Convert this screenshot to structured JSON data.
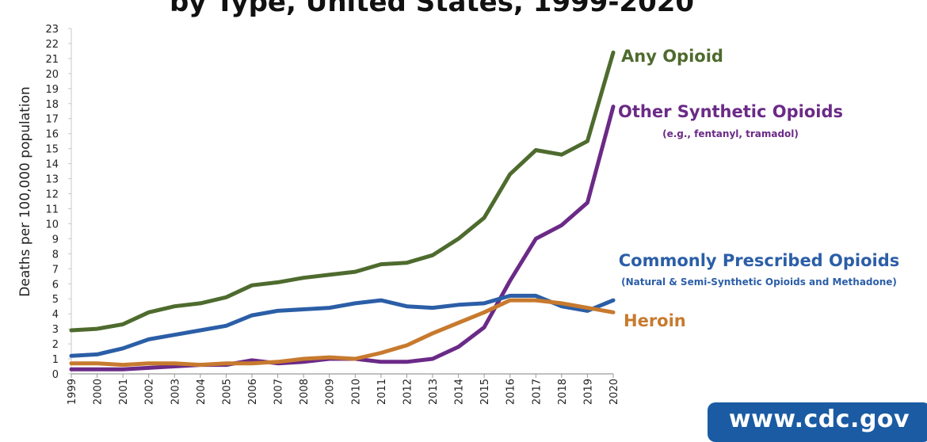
{
  "chart_data": {
    "type": "line",
    "title": "by Type, United States, 1999-2020",
    "xlabel": "",
    "ylabel": "Deaths per 100,000 population",
    "ylim": [
      0,
      23
    ],
    "yticks": [
      0,
      1,
      2,
      3,
      4,
      5,
      6,
      7,
      8,
      9,
      10,
      11,
      12,
      13,
      14,
      15,
      16,
      17,
      18,
      19,
      20,
      21,
      22,
      23
    ],
    "categories": [
      "1999",
      "2000",
      "2001",
      "2002",
      "2003",
      "2004",
      "2005",
      "2006",
      "2007",
      "2008",
      "2009",
      "2010",
      "2011",
      "2012",
      "2013",
      "2014",
      "2015",
      "2016",
      "2017",
      "2018",
      "2019",
      "2020"
    ],
    "series": [
      {
        "name": "Any Opioid",
        "color": "#4e6b2e",
        "values": [
          2.9,
          3.0,
          3.3,
          4.1,
          4.5,
          4.7,
          5.1,
          5.9,
          6.1,
          6.4,
          6.6,
          6.8,
          7.3,
          7.4,
          7.9,
          9.0,
          10.4,
          13.3,
          14.9,
          14.6,
          15.5,
          21.4
        ]
      },
      {
        "name": "Other Synthetic Opioids",
        "sublabel": "(e.g., fentanyl, tramadol)",
        "color": "#6b2a87",
        "values": [
          0.3,
          0.3,
          0.3,
          0.4,
          0.5,
          0.6,
          0.6,
          0.9,
          0.7,
          0.8,
          1.0,
          1.0,
          0.8,
          0.8,
          1.0,
          1.8,
          3.1,
          6.2,
          9.0,
          9.9,
          11.4,
          17.8
        ]
      },
      {
        "name": "Commonly Prescribed Opioids",
        "sublabel": "(Natural & Semi-Synthetic Opioids and Methadone)",
        "color": "#2b5ea7",
        "values": [
          1.2,
          1.3,
          1.7,
          2.3,
          2.6,
          2.9,
          3.2,
          3.9,
          4.2,
          4.3,
          4.4,
          4.7,
          4.9,
          4.5,
          4.4,
          4.6,
          4.7,
          5.2,
          5.2,
          4.5,
          4.2,
          4.9
        ]
      },
      {
        "name": "Heroin",
        "color": "#c77a2e",
        "values": [
          0.7,
          0.7,
          0.6,
          0.7,
          0.7,
          0.6,
          0.7,
          0.7,
          0.8,
          1.0,
          1.1,
          1.0,
          1.4,
          1.9,
          2.7,
          3.4,
          4.1,
          4.9,
          4.9,
          4.7,
          4.4,
          4.1
        ]
      }
    ]
  },
  "footer": {
    "website": "www.cdc.gov"
  }
}
